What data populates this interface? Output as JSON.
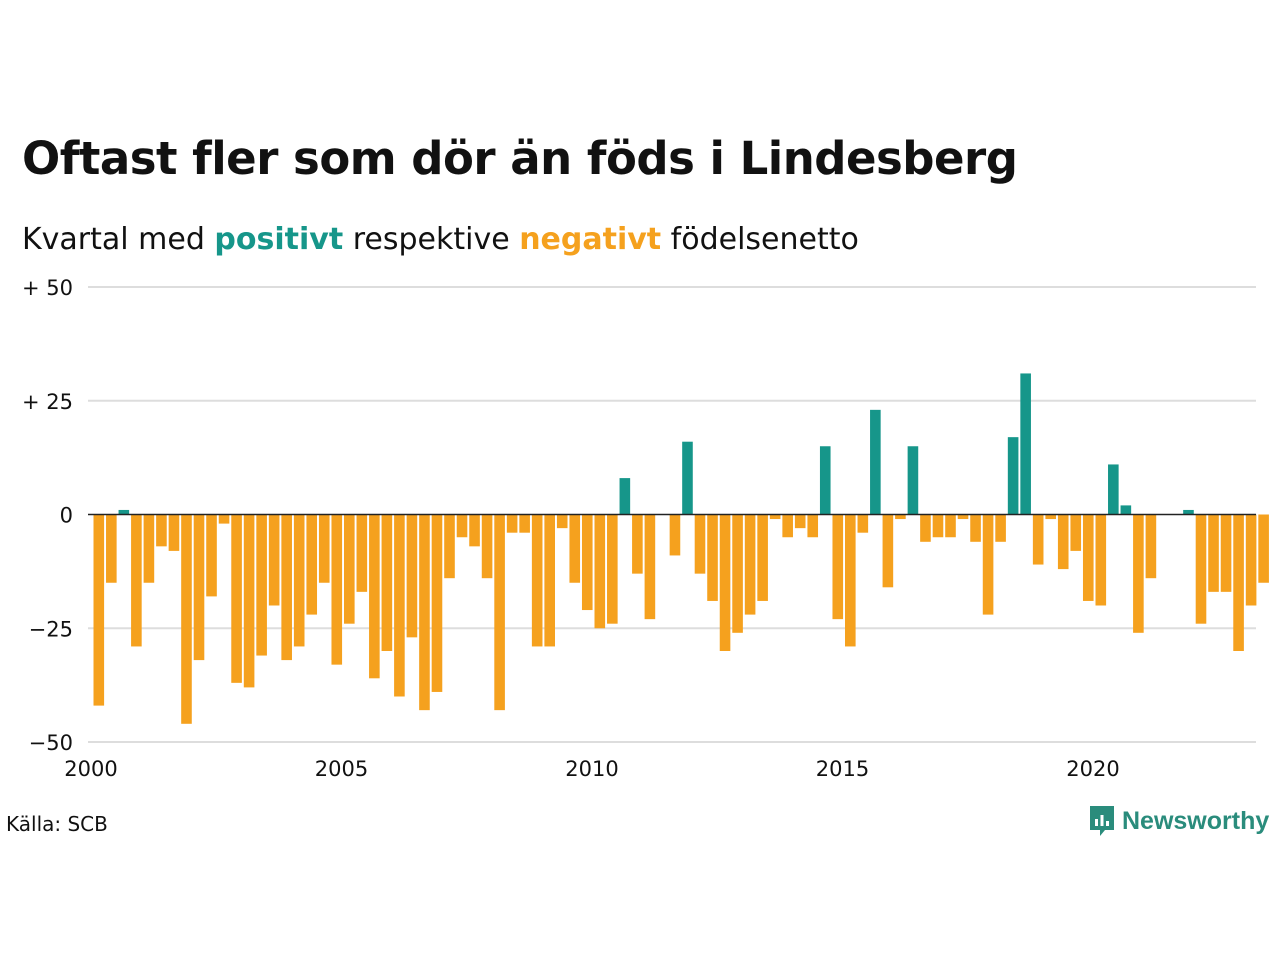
{
  "title": "Oftast fler som dör än föds i Lindesberg",
  "subtitle": {
    "prefix": "Kvartal med ",
    "positive": "positivt",
    "middle": " respektive ",
    "negative": "negativt",
    "suffix": " födelsenetto"
  },
  "source": "Källa: SCB",
  "brand": "Newsworthy",
  "colors": {
    "positive": "#16968a",
    "negative": "#f5a11e",
    "grid": "#dddddd",
    "zero": "#222222",
    "brand": "#2a8c7c"
  },
  "icons": {
    "brand_logo": "newsworthy-logo-icon"
  },
  "chart_data": {
    "type": "bar",
    "ylim": [
      -50,
      50
    ],
    "yticks": [
      50,
      25,
      0,
      -25,
      -50
    ],
    "ytick_labels": [
      "+ 50",
      "+ 25",
      "0",
      "−25",
      "−50"
    ],
    "xticks": [
      2000,
      2005,
      2010,
      2015,
      2020
    ],
    "xtick_labels": [
      "2000",
      "2005",
      "2010",
      "2015",
      "2020"
    ],
    "x_start": "2000 Q1",
    "grid": true,
    "values": [
      -42,
      -15,
      1,
      -29,
      -15,
      -7,
      -8,
      -46,
      -32,
      -18,
      -2,
      -37,
      -38,
      -31,
      -20,
      -32,
      -29,
      -22,
      -15,
      -33,
      -24,
      -17,
      -36,
      -30,
      -40,
      -27,
      -43,
      -39,
      -14,
      -5,
      -7,
      -14,
      -43,
      -4,
      -4,
      -29,
      -29,
      -3,
      -15,
      -21,
      -25,
      -24,
      8,
      -13,
      -23,
      0,
      -9,
      16,
      -13,
      -19,
      -30,
      -26,
      -22,
      -19,
      -1,
      -5,
      -3,
      -5,
      15,
      -23,
      -29,
      -4,
      23,
      -16,
      -1,
      15,
      -6,
      -5,
      -5,
      -1,
      -6,
      -22,
      -6,
      17,
      31,
      -11,
      -1,
      -12,
      -8,
      -19,
      -20,
      11,
      2,
      -26,
      -14,
      0,
      0,
      1,
      -24,
      -17,
      -17,
      -30,
      -20,
      -15
    ]
  }
}
